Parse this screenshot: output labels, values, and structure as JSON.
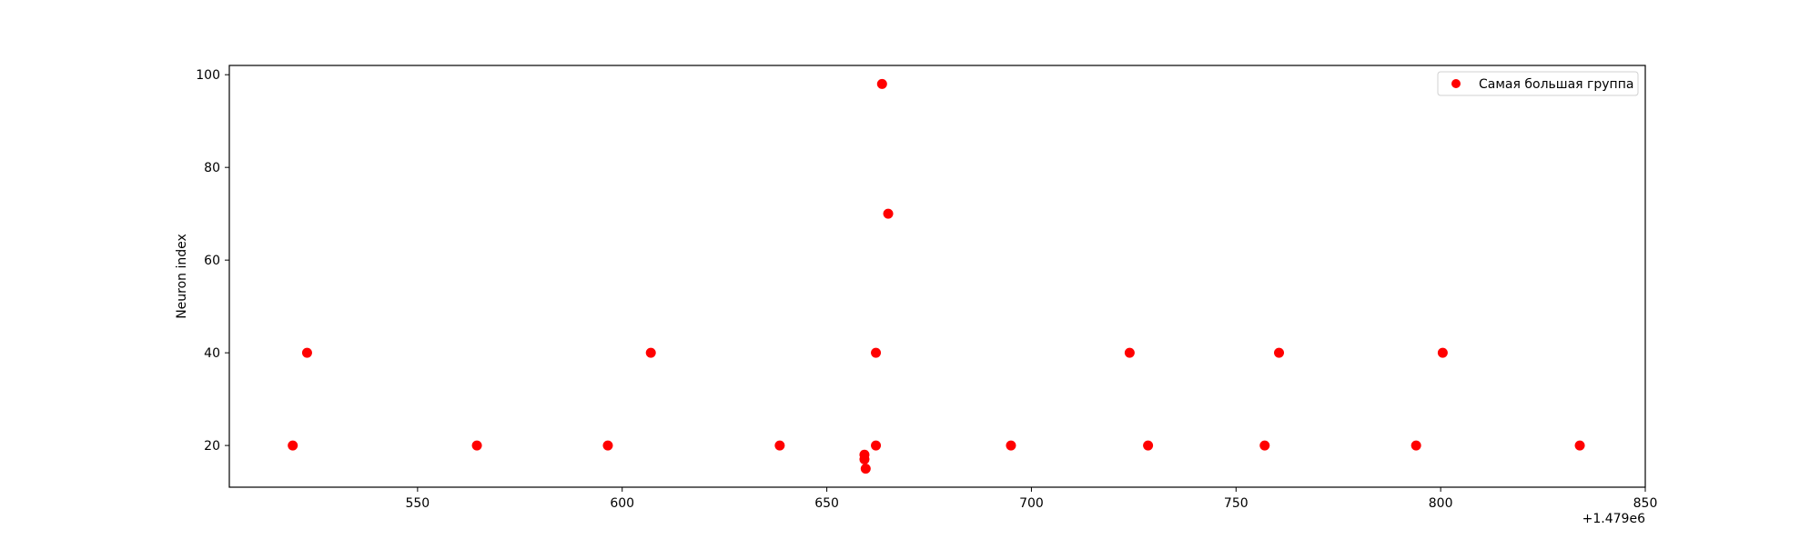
{
  "chart_data": {
    "type": "scatter",
    "title": "",
    "xlabel": "",
    "ylabel": "Neuron index",
    "x_offset_label": "+1.479e6",
    "xlim": [
      1479504,
      1479850
    ],
    "ylim": [
      11,
      102
    ],
    "xticks": [
      1479550,
      1479600,
      1479650,
      1479700,
      1479750,
      1479800,
      1479850
    ],
    "xtick_labels": [
      "550",
      "600",
      "650",
      "700",
      "750",
      "800",
      "850"
    ],
    "yticks": [
      20,
      40,
      60,
      80,
      100
    ],
    "ytick_labels": [
      "20",
      "40",
      "60",
      "80",
      "100"
    ],
    "grid": false,
    "legend_position": "top-right",
    "series": [
      {
        "name": "Самая большая группа",
        "color": "#ff0000",
        "marker": "circle",
        "points": [
          {
            "x": 1479519.5,
            "y": 20
          },
          {
            "x": 1479523.0,
            "y": 40
          },
          {
            "x": 1479564.5,
            "y": 20
          },
          {
            "x": 1479596.5,
            "y": 20
          },
          {
            "x": 1479607.0,
            "y": 40
          },
          {
            "x": 1479638.5,
            "y": 20
          },
          {
            "x": 1479659.2,
            "y": 18
          },
          {
            "x": 1479659.2,
            "y": 17
          },
          {
            "x": 1479659.5,
            "y": 15
          },
          {
            "x": 1479662.0,
            "y": 40
          },
          {
            "x": 1479662.0,
            "y": 20
          },
          {
            "x": 1479663.5,
            "y": 98
          },
          {
            "x": 1479665.0,
            "y": 70
          },
          {
            "x": 1479695.0,
            "y": 20
          },
          {
            "x": 1479724.0,
            "y": 40
          },
          {
            "x": 1479728.5,
            "y": 20
          },
          {
            "x": 1479757.0,
            "y": 20
          },
          {
            "x": 1479760.5,
            "y": 40
          },
          {
            "x": 1479794.0,
            "y": 20
          },
          {
            "x": 1479800.5,
            "y": 40
          },
          {
            "x": 1479834.0,
            "y": 20
          }
        ]
      }
    ]
  }
}
